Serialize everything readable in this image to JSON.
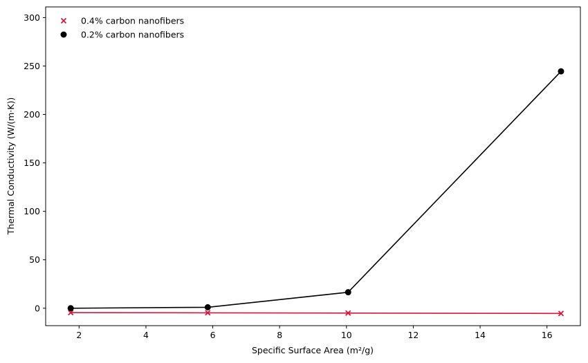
{
  "chart_data": {
    "type": "scatter",
    "title": "",
    "xlabel": "Specific Surface Area (m²/g)",
    "ylabel": "Thermal Conductivity (W/(m·K))",
    "xlim": [
      1.0,
      17.0
    ],
    "ylim": [
      -18,
      311
    ],
    "xticks": [
      2,
      4,
      6,
      8,
      10,
      12,
      14,
      16
    ],
    "yticks": [
      0,
      50,
      100,
      150,
      200,
      250,
      300
    ],
    "grid": false,
    "legend_position": "top-left",
    "series": [
      {
        "name": "0.4% carbon nanofibers",
        "marker": "x",
        "color": "#dc143c",
        "connected": true,
        "x": [
          1.75,
          5.85,
          10.05,
          16.42
        ],
        "y": [
          -4.5,
          -4.7,
          -5.0,
          -5.4
        ]
      },
      {
        "name": "0.2% carbon nanofibers",
        "marker": "circle",
        "color": "#000000",
        "connected": true,
        "x": [
          1.75,
          5.85,
          10.05,
          16.42
        ],
        "y": [
          0.0,
          1.0,
          16.5,
          244.5
        ]
      }
    ]
  }
}
